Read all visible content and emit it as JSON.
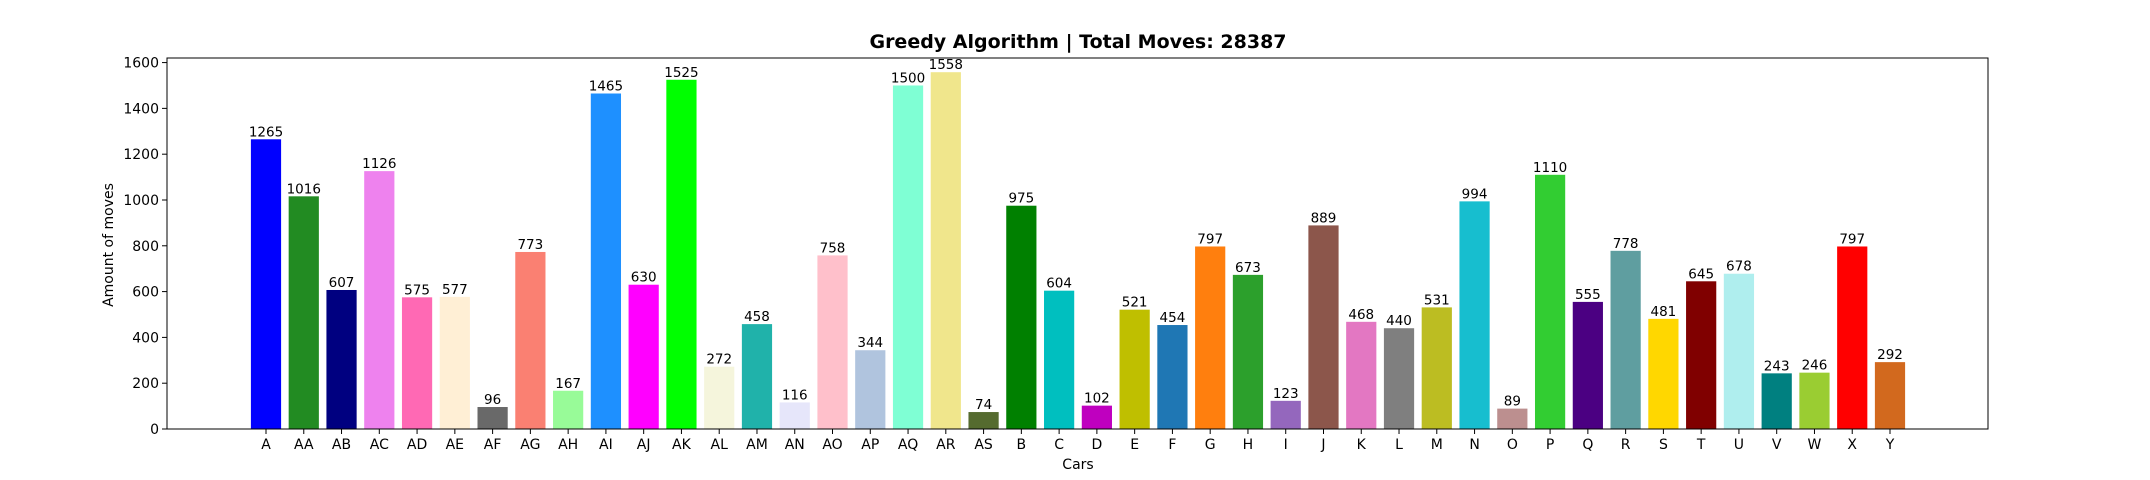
{
  "chart_data": {
    "type": "bar",
    "title": "Greedy Algorithm | Total Moves: 28387",
    "xlabel": "Cars",
    "ylabel": "Amount of moves",
    "ylim": [
      0,
      1620
    ],
    "yticks": [
      0,
      200,
      400,
      600,
      800,
      1000,
      1200,
      1400,
      1600
    ],
    "grid": false,
    "categories": [
      "A",
      "AA",
      "AB",
      "AC",
      "AD",
      "AE",
      "AF",
      "AG",
      "AH",
      "AI",
      "AJ",
      "AK",
      "AL",
      "AM",
      "AN",
      "AO",
      "AP",
      "AQ",
      "AR",
      "AS",
      "B",
      "C",
      "D",
      "E",
      "F",
      "G",
      "H",
      "I",
      "J",
      "K",
      "L",
      "M",
      "N",
      "O",
      "P",
      "Q",
      "R",
      "S",
      "T",
      "U",
      "V",
      "W",
      "X",
      "Y"
    ],
    "values": [
      1265,
      1016,
      607,
      1126,
      575,
      577,
      96,
      773,
      167,
      1465,
      630,
      1525,
      272,
      458,
      116,
      758,
      344,
      1500,
      1558,
      74,
      975,
      604,
      102,
      521,
      454,
      797,
      673,
      123,
      889,
      468,
      440,
      531,
      994,
      89,
      1110,
      555,
      778,
      481,
      645,
      678,
      243,
      246,
      797,
      292
    ],
    "colors": [
      "#0000ff",
      "#228b22",
      "#000080",
      "#ee82ee",
      "#ff69b4",
      "#ffefd5",
      "#696969",
      "#fa8072",
      "#98fb98",
      "#1e90ff",
      "#ff00ff",
      "#00ff00",
      "#f5f5dc",
      "#20b2aa",
      "#e6e6fa",
      "#ffc0cb",
      "#b0c4de",
      "#7fffd4",
      "#f0e68c",
      "#556b2f",
      "#008000",
      "#00bfbf",
      "#bf00bf",
      "#bfbf00",
      "#1f77b4",
      "#ff7f0e",
      "#2ca02c",
      "#9467bd",
      "#8c564b",
      "#e377c2",
      "#7f7f7f",
      "#bcbd22",
      "#17becf",
      "#bc8f8f",
      "#32cd32",
      "#4b0082",
      "#5f9ea0",
      "#ffd700",
      "#800000",
      "#afeeee",
      "#008080",
      "#9acd32",
      "#ff0000",
      "#d2691e"
    ]
  }
}
